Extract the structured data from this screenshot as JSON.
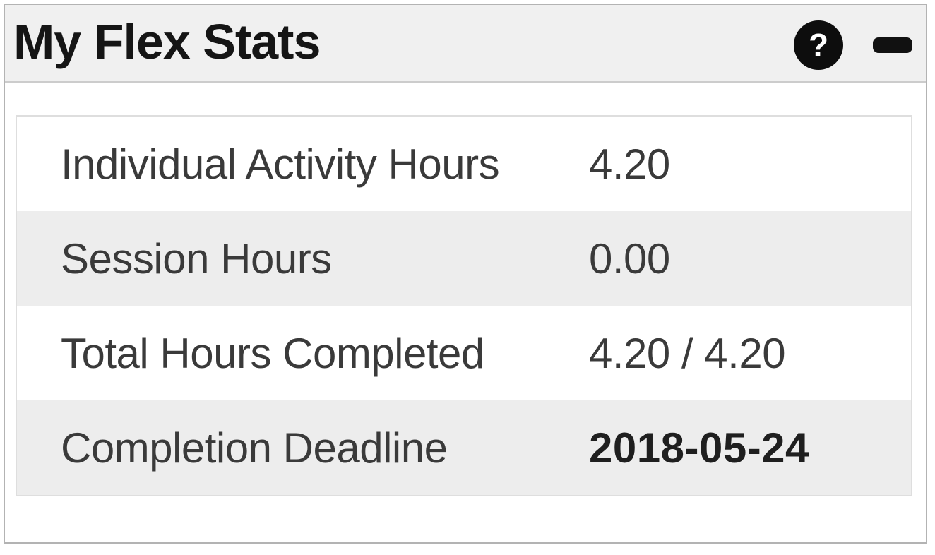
{
  "widget": {
    "title": "My Flex Stats",
    "header": {
      "help_icon_glyph": "?",
      "collapse_icon": "minus"
    },
    "stats": [
      {
        "label": "Individual Activity Hours",
        "value": "4.20"
      },
      {
        "label": "Session Hours",
        "value": "0.00"
      },
      {
        "label": "Total Hours Completed",
        "value": "4.20 / 4.20"
      },
      {
        "label": "Completion Deadline",
        "value": "2018-05-24"
      }
    ],
    "colors": {
      "header_bg": "#f0f0f0",
      "row_stripe": "#ededed",
      "panel_border": "#b3b3b3",
      "table_border": "#dedede",
      "icon_bg": "#0d0d0d",
      "text": "#3a3a3a"
    }
  }
}
